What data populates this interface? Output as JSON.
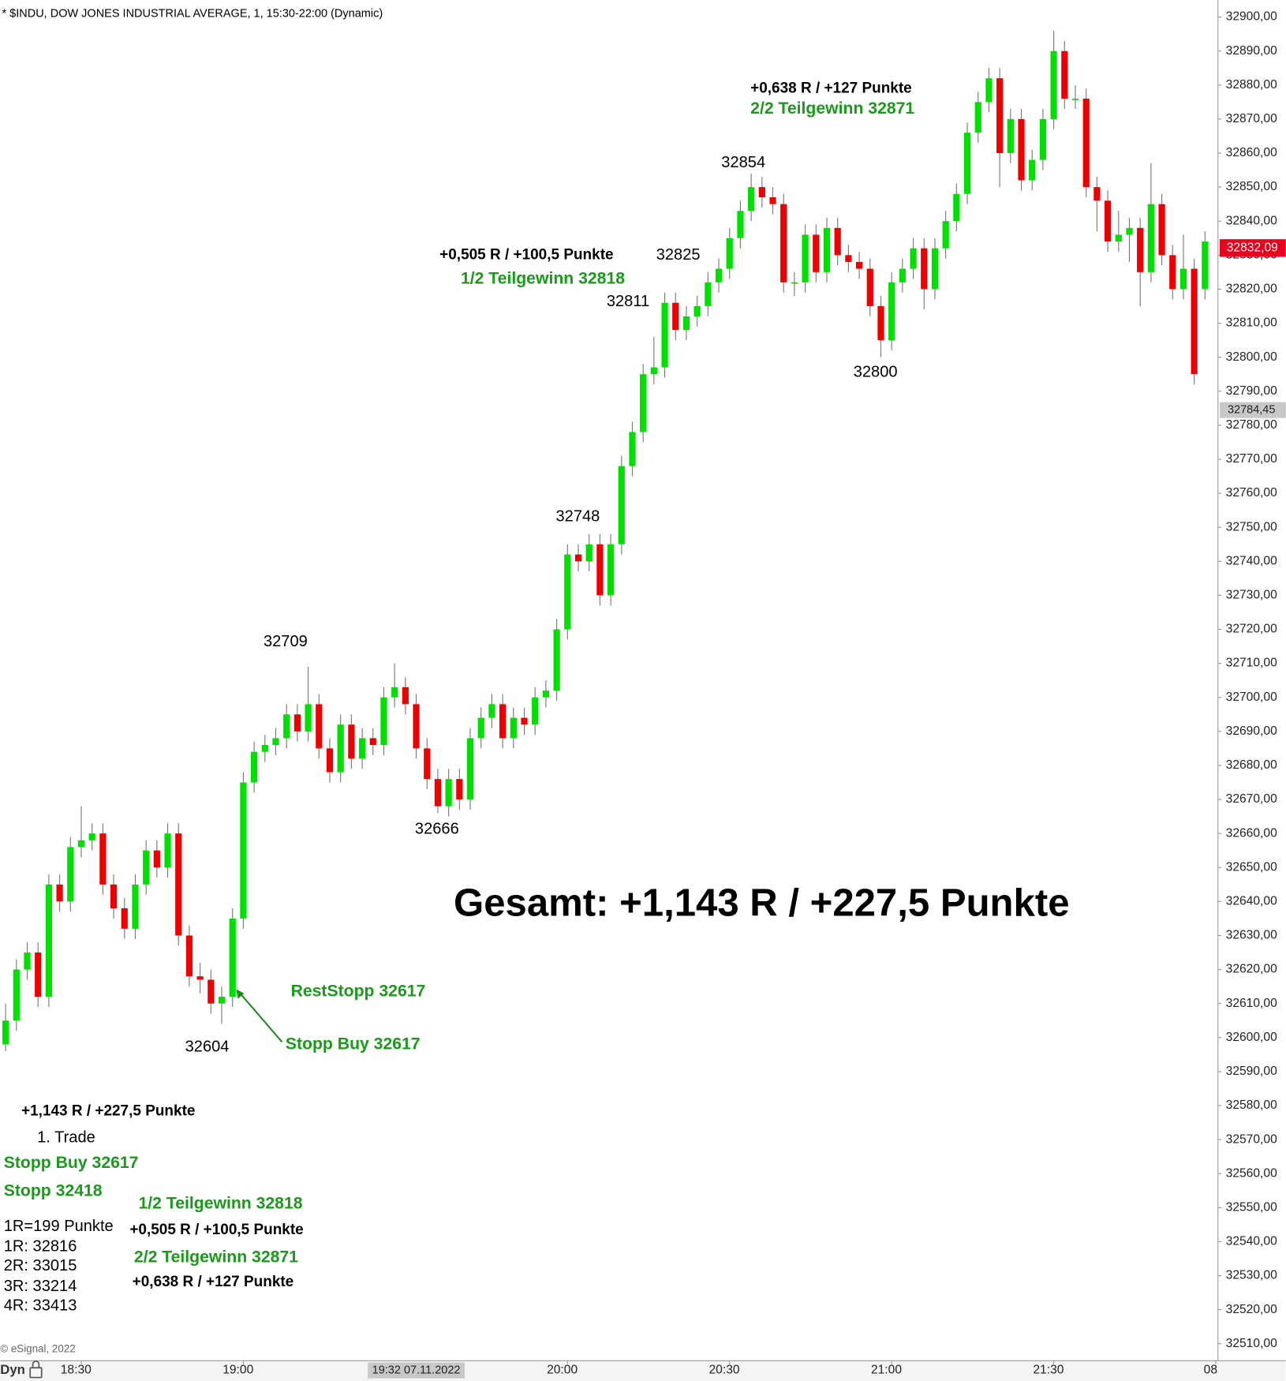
{
  "chart_data": {
    "type": "candlestick",
    "title": "* $INDU, DOW JONES INDUSTRIAL AVERAGE, 1, 15:30-22:00 (Dynamic)",
    "up_color": "#00e000",
    "down_color": "#ee0000",
    "grid": false,
    "xlim": [
      -0.5,
      112.2
    ],
    "xticks": [
      {
        "value": 7,
        "label": "18:30"
      },
      {
        "value": 22,
        "label": "19:00"
      },
      {
        "value": 52,
        "label": "20:00"
      },
      {
        "value": 67,
        "label": "20:30"
      },
      {
        "value": 82,
        "label": "21:00"
      },
      {
        "value": 97,
        "label": "21:30"
      },
      {
        "value": 112,
        "label": "08"
      }
    ],
    "crosshair_time": {
      "value": 38,
      "label": "19:32 07.11.2022"
    },
    "ylim": [
      32505,
      32905
    ],
    "yticks": [
      {
        "value": 32510,
        "label": "32510,00"
      },
      {
        "value": 32520,
        "label": "32520,00"
      },
      {
        "value": 32530,
        "label": "32530,00"
      },
      {
        "value": 32540,
        "label": "32540,00"
      },
      {
        "value": 32550,
        "label": "32550,00"
      },
      {
        "value": 32560,
        "label": "32560,00"
      },
      {
        "value": 32570,
        "label": "32570,00"
      },
      {
        "value": 32580,
        "label": "32580,00"
      },
      {
        "value": 32590,
        "label": "32590,00"
      },
      {
        "value": 32600,
        "label": "32600,00"
      },
      {
        "value": 32610,
        "label": "32610,00"
      },
      {
        "value": 32620,
        "label": "32620,00"
      },
      {
        "value": 32630,
        "label": "32630,00"
      },
      {
        "value": 32640,
        "label": "32640,00"
      },
      {
        "value": 32650,
        "label": "32650,00"
      },
      {
        "value": 32660,
        "label": "32660,00"
      },
      {
        "value": 32670,
        "label": "32670,00"
      },
      {
        "value": 32680,
        "label": "32680,00"
      },
      {
        "value": 32690,
        "label": "32690,00"
      },
      {
        "value": 32700,
        "label": "32700,00"
      },
      {
        "value": 32710,
        "label": "32710,00"
      },
      {
        "value": 32720,
        "label": "32720,00"
      },
      {
        "value": 32730,
        "label": "32730,00"
      },
      {
        "value": 32740,
        "label": "32740,00"
      },
      {
        "value": 32750,
        "label": "32750,00"
      },
      {
        "value": 32760,
        "label": "32760,00"
      },
      {
        "value": 32770,
        "label": "32770,00"
      },
      {
        "value": 32780,
        "label": "32780,00"
      },
      {
        "value": 32790,
        "label": "32790,00"
      },
      {
        "value": 32800,
        "label": "32800,00"
      },
      {
        "value": 32810,
        "label": "32810,00"
      },
      {
        "value": 32820,
        "label": "32820,00"
      },
      {
        "value": 32830,
        "label": "32830,00"
      },
      {
        "value": 32840,
        "label": "32840,00"
      },
      {
        "value": 32850,
        "label": "32850,00"
      },
      {
        "value": 32860,
        "label": "32860,00"
      },
      {
        "value": 32870,
        "label": "32870,00"
      },
      {
        "value": 32880,
        "label": "32880,00"
      },
      {
        "value": 32890,
        "label": "32890,00"
      },
      {
        "value": 32900,
        "label": "32900,00"
      }
    ],
    "last_price": {
      "value": 32832.09,
      "label": "32832,09"
    },
    "cursor_price": {
      "value": 32784.45,
      "label": "32784,45"
    },
    "candles": [
      [
        32598,
        32610,
        32596,
        32605
      ],
      [
        32605,
        32623,
        32602,
        32620
      ],
      [
        32620,
        32628,
        32617,
        32625
      ],
      [
        32625,
        32628,
        32609,
        32612
      ],
      [
        32612,
        32648,
        32609,
        32645
      ],
      [
        32645,
        32648,
        32637,
        32640
      ],
      [
        32640,
        32659,
        32637,
        32656
      ],
      [
        32656,
        32668,
        32653,
        32658
      ],
      [
        32658,
        32663,
        32655,
        32660
      ],
      [
        32660,
        32663,
        32642,
        32645
      ],
      [
        32645,
        32648,
        32635,
        32638
      ],
      [
        32638,
        32641,
        32629,
        32632
      ],
      [
        32632,
        32648,
        32629,
        32645
      ],
      [
        32645,
        32658,
        32642,
        32655
      ],
      [
        32655,
        32658,
        32647,
        32650
      ],
      [
        32650,
        32663,
        32647,
        32660
      ],
      [
        32660,
        32663,
        32627,
        32630
      ],
      [
        32630,
        32633,
        32615,
        32618
      ],
      [
        32618,
        32622,
        32613,
        32617
      ],
      [
        32617,
        32620,
        32607,
        32610
      ],
      [
        32610,
        32615,
        32604,
        32612
      ],
      [
        32612,
        32638,
        32609,
        32635
      ],
      [
        32635,
        32678,
        32632,
        32675
      ],
      [
        32675,
        32687,
        32672,
        32684
      ],
      [
        32684,
        32689,
        32681,
        32686
      ],
      [
        32686,
        32691,
        32683,
        32688
      ],
      [
        32688,
        32698,
        32685,
        32695
      ],
      [
        32695,
        32698,
        32687,
        32690
      ],
      [
        32690,
        32709,
        32687,
        32698
      ],
      [
        32698,
        32701,
        32682,
        32685
      ],
      [
        32685,
        32688,
        32675,
        32678
      ],
      [
        32678,
        32695,
        32675,
        32692
      ],
      [
        32692,
        32695,
        32679,
        32682
      ],
      [
        32682,
        32691,
        32679,
        32688
      ],
      [
        32688,
        32691,
        32683,
        32686
      ],
      [
        32686,
        32703,
        32683,
        32700
      ],
      [
        32700,
        32710,
        32697,
        32703
      ],
      [
        32703,
        32706,
        32695,
        32698
      ],
      [
        32698,
        32701,
        32682,
        32685
      ],
      [
        32685,
        32688,
        32673,
        32676
      ],
      [
        32676,
        32679,
        32666,
        32668
      ],
      [
        32668,
        32679,
        32665,
        32676
      ],
      [
        32676,
        32679,
        32667,
        32670
      ],
      [
        32670,
        32691,
        32667,
        32688
      ],
      [
        32688,
        32697,
        32685,
        32694
      ],
      [
        32694,
        32701,
        32691,
        32698
      ],
      [
        32698,
        32701,
        32685,
        32688
      ],
      [
        32688,
        32697,
        32685,
        32694
      ],
      [
        32694,
        32697,
        32689,
        32692
      ],
      [
        32692,
        32703,
        32689,
        32700
      ],
      [
        32700,
        32705,
        32697,
        32702
      ],
      [
        32702,
        32723,
        32699,
        32720
      ],
      [
        32720,
        32745,
        32717,
        32742
      ],
      [
        32742,
        32745,
        32737,
        32740
      ],
      [
        32740,
        32748,
        32737,
        32745
      ],
      [
        32745,
        32748,
        32727,
        32730
      ],
      [
        32730,
        32748,
        32727,
        32745
      ],
      [
        32745,
        32771,
        32742,
        32768
      ],
      [
        32768,
        32781,
        32765,
        32778
      ],
      [
        32778,
        32798,
        32775,
        32795
      ],
      [
        32795,
        32806,
        32792,
        32797
      ],
      [
        32797,
        32819,
        32794,
        32816
      ],
      [
        32816,
        32819,
        32805,
        32808
      ],
      [
        32808,
        32815,
        32805,
        32812
      ],
      [
        32812,
        32818,
        32809,
        32815
      ],
      [
        32815,
        32825,
        32812,
        32822
      ],
      [
        32822,
        32829,
        32819,
        32826
      ],
      [
        32826,
        32838,
        32823,
        32835
      ],
      [
        32835,
        32846,
        32832,
        32843
      ],
      [
        32843,
        32854,
        32840,
        32850
      ],
      [
        32850,
        32853,
        32844,
        32847
      ],
      [
        32847,
        32850,
        32842,
        32845
      ],
      [
        32845,
        32848,
        32819,
        32822
      ],
      [
        32822,
        32825,
        32818,
        32822
      ],
      [
        32822,
        32839,
        32819,
        32836
      ],
      [
        32836,
        32839,
        32822,
        32825
      ],
      [
        32825,
        32841,
        32822,
        32838
      ],
      [
        32838,
        32841,
        32827,
        32830
      ],
      [
        32830,
        32833,
        32825,
        32828
      ],
      [
        32828,
        32831,
        32823,
        32826
      ],
      [
        32826,
        32829,
        32812,
        32815
      ],
      [
        32815,
        32818,
        32800,
        32805
      ],
      [
        32805,
        32825,
        32802,
        32822
      ],
      [
        32822,
        32829,
        32819,
        32826
      ],
      [
        32826,
        32835,
        32823,
        32832
      ],
      [
        32832,
        32835,
        32814,
        32820
      ],
      [
        32820,
        32835,
        32817,
        32832
      ],
      [
        32832,
        32843,
        32829,
        32840
      ],
      [
        32840,
        32851,
        32837,
        32848
      ],
      [
        32848,
        32869,
        32845,
        32866
      ],
      [
        32866,
        32878,
        32863,
        32875
      ],
      [
        32875,
        32885,
        32872,
        32882
      ],
      [
        32882,
        32885,
        32850,
        32860
      ],
      [
        32860,
        32873,
        32857,
        32870
      ],
      [
        32870,
        32873,
        32849,
        32852
      ],
      [
        32852,
        32861,
        32849,
        32858
      ],
      [
        32858,
        32873,
        32855,
        32870
      ],
      [
        32870,
        32896,
        32867,
        32890
      ],
      [
        32890,
        32893,
        32873,
        32876
      ],
      [
        32876,
        32880,
        32873,
        32876
      ],
      [
        32876,
        32879,
        32847,
        32850
      ],
      [
        32850,
        32853,
        32837,
        32846
      ],
      [
        32846,
        32849,
        32831,
        32834
      ],
      [
        32834,
        32843,
        32831,
        32836
      ],
      [
        32836,
        32841,
        32828,
        32838
      ],
      [
        32838,
        32841,
        32815,
        32825
      ],
      [
        32825,
        32857,
        32822,
        32845
      ],
      [
        32845,
        32848,
        32827,
        32830
      ],
      [
        32830,
        32833,
        32817,
        32820
      ],
      [
        32820,
        32836,
        32817,
        32826
      ],
      [
        32826,
        32829,
        32792,
        32795
      ],
      [
        32820,
        32837,
        32817,
        32834
      ]
    ],
    "annotations": [
      "+0,638 R / +127 Punkte",
      "2/2 Teilgewinn 32871",
      "32854",
      "+0,505 R / +100,5 Punkte",
      "32825",
      "1/2 Teilgewinn 32818",
      "32811",
      "32800",
      "32748",
      "32709",
      "32666",
      "Gesamt: +1,143 R / +227,5 Punkte",
      "RestStopp 32617",
      "Stopp Buy 32617",
      "32604",
      "+1,143 R / +227,5 Punkte",
      "1. Trade",
      "Stopp Buy 32617",
      "Stopp 32418",
      "1/2 Teilgewinn 32818",
      "1R=199 Punkte",
      "+0,505 R / +100,5 Punkte",
      "1R: 32816",
      "2R: 33015",
      "2/2 Teilgewinn 32871",
      "3R: 33214",
      "+0,638 R / +127 Punkte",
      "4R: 33413"
    ],
    "copyright": "© eSignal, 2022",
    "mode_label": "Dyn"
  }
}
